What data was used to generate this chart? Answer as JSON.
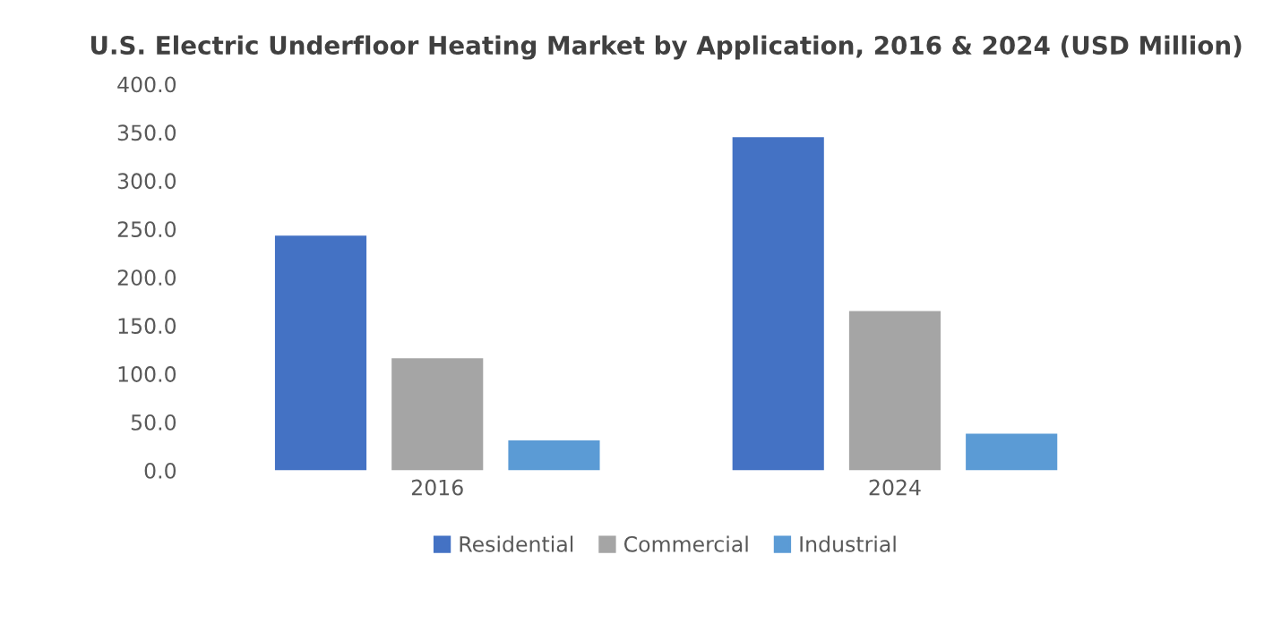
{
  "chart_data": {
    "type": "bar",
    "title": "U.S. Electric Underfloor Heating Market by Application, 2016 & 2024 (USD Million)",
    "categories": [
      "2016",
      "2024"
    ],
    "series": [
      {
        "name": "Residential",
        "color": "#4472c4",
        "values": [
          243,
          345
        ]
      },
      {
        "name": "Commercial",
        "color": "#a5a5a5",
        "values": [
          116,
          165
        ]
      },
      {
        "name": "Industrial",
        "color": "#5b9bd5",
        "values": [
          31,
          38
        ]
      }
    ],
    "ylim": [
      0,
      400
    ],
    "yticks": [
      {
        "value": 0,
        "label": "0.0"
      },
      {
        "value": 50,
        "label": "50.0"
      },
      {
        "value": 100,
        "label": "100.0"
      },
      {
        "value": 150,
        "label": "150.0"
      },
      {
        "value": 200,
        "label": "200.0"
      },
      {
        "value": 250,
        "label": "250.0"
      },
      {
        "value": 300,
        "label": "300.0"
      },
      {
        "value": 350,
        "label": "350.0"
      },
      {
        "value": 400,
        "label": "400.0"
      }
    ],
    "grid": false,
    "legend": "bottom"
  }
}
